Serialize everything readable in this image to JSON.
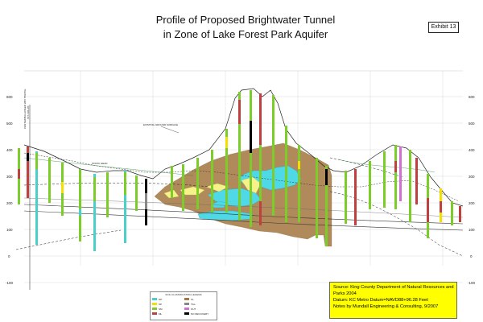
{
  "title": {
    "line1": "Profile of Proposed Brightwater Tunnel",
    "line2": "in Zone of Lake Forest Park Aquifer"
  },
  "exhibit": "Exhibit 13",
  "axis": {
    "ticks": [
      "600",
      "500",
      "400",
      "300",
      "200",
      "100",
      "0",
      "-100"
    ]
  },
  "annotations": {
    "existing_ground_surface": "EXISTING GROUND SURFACE",
    "static_head": "STATIC HEAD",
    "portal_label": "CENTER/BALLINGER WAY PORTAL",
    "portal_station": "STA 494+00"
  },
  "legend": {
    "title": "SOIL CLASSIFICATION LEGEND",
    "items": [
      {
        "label": "GP",
        "color": "#4ad0c8"
      },
      {
        "label": "SP",
        "color": "#f4e000"
      },
      {
        "label": "SM",
        "color": "#7ccc2a"
      },
      {
        "label": "ML",
        "color": "#c04040"
      },
      {
        "label": "CL",
        "color": "#a07840"
      },
      {
        "label": "TILL",
        "color": "#888888"
      },
      {
        "label": "OUT",
        "color": "#d070d0"
      },
      {
        "label": "NO RECOVERY",
        "color": "#000000"
      }
    ]
  },
  "source_box": {
    "line1": "Source: King County Department of Natural Resources and",
    "line2": "Parks 2004",
    "line3": "Datum: KC Metro Datum=NAVD88+96.28 Feet",
    "line4": "Notes by Mundall Engineering & Consulting, 9/2007"
  },
  "colors": {
    "aquitard": "#b08a5a",
    "aquifer": "#4fd8e6",
    "sand_lens": "#f6f28a",
    "source_bg": "#ffff00"
  }
}
